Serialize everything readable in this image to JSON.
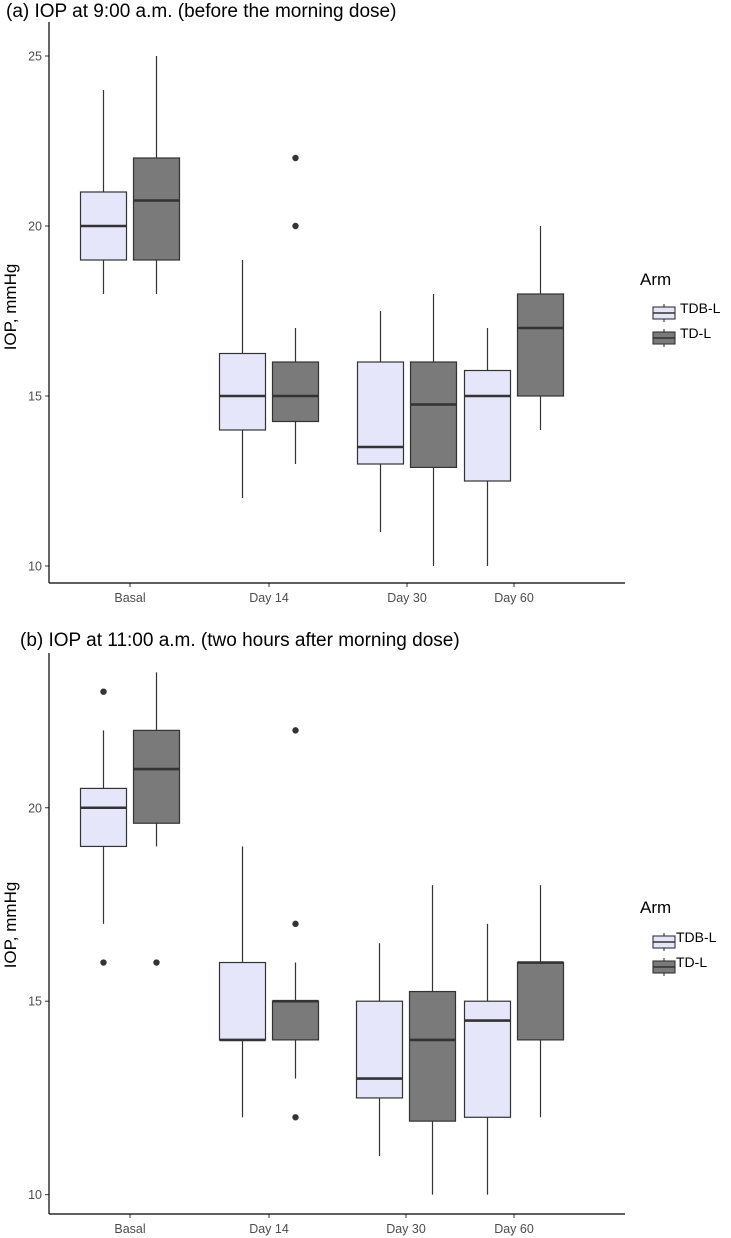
{
  "colors": {
    "TDB-L": "#e6e6fa",
    "TD-L": "#7a7a7a",
    "stroke": "#333333",
    "axis": "#000000",
    "tick_text": "#4d4d4d"
  },
  "chart_data": [
    {
      "type": "boxplot",
      "title": "(a) IOP at 9:00 a.m. (before the morning dose)",
      "ylabel": "IOP, mmHg",
      "xlabel": "",
      "ylim": [
        9.5,
        26
      ],
      "yticks": [
        10,
        15,
        20,
        25
      ],
      "categories": [
        "Basal",
        "Day 14",
        "Day 30",
        "Day 60"
      ],
      "legend": {
        "title": "Arm",
        "entries": [
          "TDB-L",
          "TD-L"
        ],
        "position": "right"
      },
      "series": [
        {
          "name": "TDB-L",
          "boxes": [
            {
              "category": "Basal",
              "min": 18,
              "q1": 19,
              "median": 20,
              "q3": 21,
              "max": 24,
              "outliers": []
            },
            {
              "category": "Day 14",
              "min": 12,
              "q1": 14,
              "median": 15,
              "q3": 16.25,
              "max": 19,
              "outliers": []
            },
            {
              "category": "Day 30",
              "min": 11,
              "q1": 13,
              "median": 13.5,
              "q3": 16,
              "max": 17.5,
              "outliers": []
            },
            {
              "category": "Day 60",
              "min": 10,
              "q1": 12.5,
              "median": 15,
              "q3": 15.75,
              "max": 17,
              "outliers": []
            }
          ]
        },
        {
          "name": "TD-L",
          "boxes": [
            {
              "category": "Basal",
              "min": 18,
              "q1": 19,
              "median": 20.75,
              "q3": 22,
              "max": 25,
              "outliers": []
            },
            {
              "category": "Day 14",
              "min": 13,
              "q1": 14.25,
              "median": 15,
              "q3": 16,
              "max": 17,
              "outliers": [
                20,
                22
              ]
            },
            {
              "category": "Day 30",
              "min": 10,
              "q1": 12.9,
              "median": 14.75,
              "q3": 16,
              "max": 18,
              "outliers": []
            },
            {
              "category": "Day 60",
              "min": 14,
              "q1": 15,
              "median": 17,
              "q3": 18,
              "max": 20,
              "outliers": []
            }
          ]
        }
      ]
    },
    {
      "type": "boxplot",
      "title": "(b) IOP at 11:00 a.m. (two hours after morning dose)",
      "ylabel": "IOP, mmHg",
      "xlabel": "",
      "ylim": [
        9.5,
        24
      ],
      "yticks": [
        10,
        15,
        20
      ],
      "categories": [
        "Basal",
        "Day 14",
        "Day 30",
        "Day 60"
      ],
      "legend": {
        "title": "Arm",
        "entries": [
          "TDB-L",
          "TD-L"
        ],
        "position": "right"
      },
      "series": [
        {
          "name": "TDB-L",
          "boxes": [
            {
              "category": "Basal",
              "min": 17,
              "q1": 19,
              "median": 20,
              "q3": 20.5,
              "max": 22,
              "outliers": [
                23,
                16
              ]
            },
            {
              "category": "Day 14",
              "min": 12,
              "q1": 14,
              "median": 14,
              "q3": 16,
              "max": 19,
              "outliers": []
            },
            {
              "category": "Day 30",
              "min": 11,
              "q1": 12.5,
              "median": 13,
              "q3": 15,
              "max": 16.5,
              "outliers": []
            },
            {
              "category": "Day 60",
              "min": 10,
              "q1": 12,
              "median": 14.5,
              "q3": 15,
              "max": 17,
              "outliers": []
            }
          ]
        },
        {
          "name": "TD-L",
          "boxes": [
            {
              "category": "Basal",
              "min": 19,
              "q1": 19.6,
              "median": 21,
              "q3": 22,
              "max": 23.5,
              "outliers": [
                16
              ]
            },
            {
              "category": "Day 14",
              "min": 13,
              "q1": 14,
              "median": 15,
              "q3": 15,
              "max": 16,
              "outliers": [
                22,
                17,
                12
              ]
            },
            {
              "category": "Day 30",
              "min": 10,
              "q1": 11.9,
              "median": 14,
              "q3": 15.25,
              "max": 18,
              "outliers": []
            },
            {
              "category": "Day 60",
              "min": 12,
              "q1": 14,
              "median": 16,
              "q3": 16,
              "max": 18,
              "outliers": []
            }
          ]
        }
      ]
    }
  ]
}
